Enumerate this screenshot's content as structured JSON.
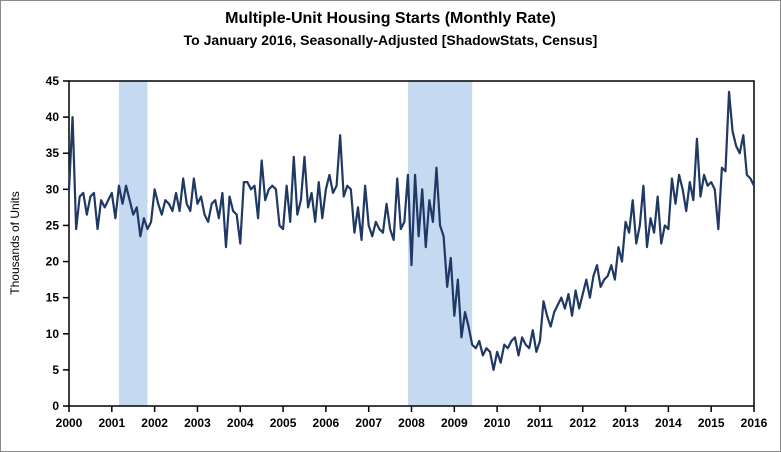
{
  "title": "Multiple-Unit Housing Starts (Monthly Rate)",
  "subtitle": "To January 2016, Seasonally-Adjusted [ShadowStats, Census]",
  "chart_data": {
    "type": "line",
    "title": "Multiple-Unit Housing Starts (Monthly Rate)",
    "subtitle": "To January 2016, Seasonally-Adjusted [ShadowStats, Census]",
    "xlabel": "",
    "ylabel": "Thousands of Units",
    "ylim": [
      0,
      45
    ],
    "ytick_step": 5,
    "x_start_year": 2000,
    "x_end_year": 2016,
    "x_tick_years": [
      2000,
      2001,
      2002,
      2003,
      2004,
      2005,
      2006,
      2007,
      2008,
      2009,
      2010,
      2011,
      2012,
      2013,
      2014,
      2015,
      2016
    ],
    "frequency": "monthly",
    "series_start": "2000-01",
    "series_end": "2016-01",
    "grid": false,
    "legend": "none",
    "line_color": "#1F3864",
    "band_color": "#C5D9F1",
    "recession_bands": [
      {
        "start": 2001.167,
        "end": 2001.833
      },
      {
        "start": 2007.917,
        "end": 2009.417
      }
    ],
    "values": [
      30,
      40,
      24.5,
      29,
      29.5,
      26.5,
      29,
      29.5,
      24.5,
      28.5,
      27.5,
      28.5,
      29.5,
      26,
      30.5,
      28,
      30.5,
      28.5,
      26.5,
      27.5,
      23.5,
      26,
      24.5,
      25.5,
      30,
      28,
      26.5,
      28.5,
      28,
      27,
      29.5,
      27,
      31.5,
      28,
      27,
      31.5,
      28,
      29,
      26.5,
      25.5,
      28,
      28.5,
      26,
      29.5,
      22,
      29,
      27,
      26.5,
      22.5,
      31,
      31,
      30,
      30.5,
      26,
      34,
      28.5,
      30,
      30.5,
      30,
      25,
      24.5,
      30.5,
      25.5,
      34.5,
      26.5,
      28.5,
      34.5,
      27.5,
      29.5,
      25.5,
      31,
      26,
      30,
      32,
      29.5,
      30.5,
      37.5,
      29,
      30.5,
      30,
      24,
      27.5,
      23,
      30.5,
      25,
      23.5,
      25.5,
      24.5,
      24,
      28,
      24.5,
      23,
      31.5,
      24.5,
      25.5,
      32,
      19.5,
      32,
      23.5,
      30,
      22,
      28.5,
      25.5,
      33,
      25,
      23.5,
      16.5,
      20.5,
      12.5,
      17.5,
      9.5,
      13,
      11,
      8.5,
      8,
      9,
      7,
      8,
      7.5,
      5,
      7.5,
      6,
      8.5,
      8,
      9,
      9.5,
      7,
      9.5,
      8.5,
      8,
      10.5,
      7.5,
      9,
      14.5,
      12.5,
      11,
      13,
      14,
      15,
      13.5,
      15.5,
      12.5,
      16,
      13.5,
      15.5,
      17.5,
      15,
      18,
      19.5,
      16.5,
      17.5,
      18,
      19.5,
      17.5,
      22,
      20,
      25.5,
      24,
      28.5,
      22.5,
      25,
      30.5,
      22,
      26,
      24,
      29,
      22.5,
      25,
      24.5,
      31.5,
      28,
      32,
      30,
      27,
      31,
      28.5,
      37,
      29,
      32,
      30.5,
      31,
      30,
      24.5,
      33,
      32.5,
      43.5,
      38,
      36,
      35,
      37.5,
      32,
      31.5,
      30.5
    ]
  }
}
